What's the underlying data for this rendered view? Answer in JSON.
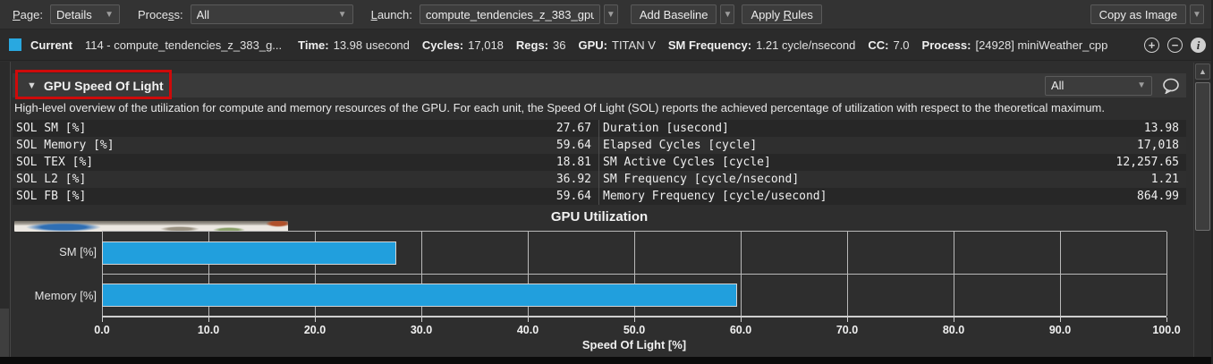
{
  "toolbar": {
    "page": {
      "mn": "P",
      "rest": "age:"
    },
    "page_value": "Details",
    "process": {
      "pre": "Proce",
      "mn": "s",
      "rest": "s:"
    },
    "process_value": "All",
    "launch": {
      "mn": "L",
      "rest": "aunch:"
    },
    "launch_value": "compute_tendencies_z_383_gpu",
    "add_baseline": "Add Baseline",
    "apply_rules": {
      "pre": "Apply ",
      "mn": "R",
      "rest": "ules"
    },
    "copy_as_image": "Copy as Image"
  },
  "current_row": {
    "swatch_color": "#29a8e0",
    "label": "Current",
    "kernel": "114 - compute_tendencies_z_383_g...",
    "fields": [
      {
        "label": "Time:",
        "value": "13.98 usecond"
      },
      {
        "label": "Cycles:",
        "value": "17,018"
      },
      {
        "label": "Regs:",
        "value": "36"
      },
      {
        "label": "GPU:",
        "value": "TITAN V"
      },
      {
        "label": "SM Frequency:",
        "value": "1.21 cycle/nsecond"
      },
      {
        "label": "CC:",
        "value": "7.0"
      },
      {
        "label": "Process:",
        "value": "[24928] miniWeather_cpp"
      }
    ]
  },
  "section": {
    "collapse_arrow": "▼",
    "title": "GPU Speed Of Light",
    "filter_value": "All",
    "description": "High-level overview of the utilization for compute and memory resources of the GPU. For each unit, the Speed Of Light (SOL) reports the achieved percentage of utilization with respect to the theoretical maximum."
  },
  "sol_table": {
    "left": [
      {
        "label": "SOL SM [%]",
        "value": "27.67"
      },
      {
        "label": "SOL Memory [%]",
        "value": "59.64"
      },
      {
        "label": "SOL TEX [%]",
        "value": "18.81"
      },
      {
        "label": "SOL L2 [%]",
        "value": "36.92"
      },
      {
        "label": "SOL FB [%]",
        "value": "59.64"
      }
    ],
    "right": [
      {
        "label": "Duration [usecond]",
        "value": "13.98"
      },
      {
        "label": "Elapsed Cycles [cycle]",
        "value": "17,018"
      },
      {
        "label": "SM Active Cycles [cycle]",
        "value": "12,257.65"
      },
      {
        "label": "SM Frequency [cycle/nsecond]",
        "value": "1.21"
      },
      {
        "label": "Memory Frequency [cycle/usecond]",
        "value": "864.99"
      }
    ]
  },
  "chart_data": {
    "type": "bar",
    "orientation": "horizontal",
    "title": "GPU Utilization",
    "categories": [
      "SM [%]",
      "Memory [%]"
    ],
    "values": [
      27.67,
      59.64
    ],
    "xlabel": "Speed Of Light [%]",
    "xlim": [
      0,
      100
    ],
    "xticks": [
      0,
      10,
      20,
      30,
      40,
      50,
      60,
      70,
      80,
      90,
      100
    ],
    "grid": true,
    "bar_color": "#219fdd"
  }
}
